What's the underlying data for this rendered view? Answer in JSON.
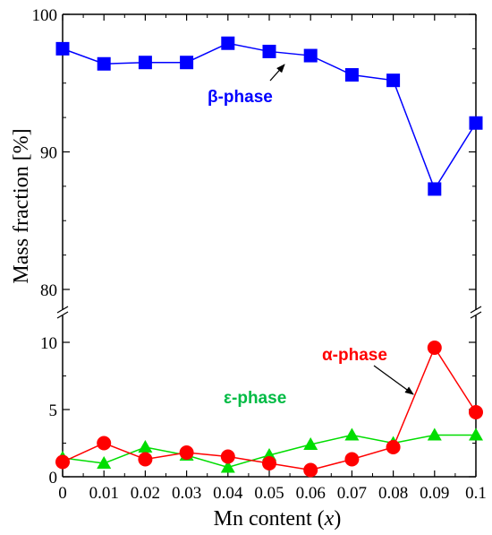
{
  "chart_data": {
    "type": "scatter",
    "xlabel": "Mn content (",
    "xlabel_var": "x",
    "xlabel_end": ")",
    "ylabel": "Mass fraction [%]",
    "x": [
      0,
      0.01,
      0.02,
      0.03,
      0.04,
      0.05,
      0.06,
      0.07,
      0.08,
      0.09,
      0.1
    ],
    "x_tick_labels": [
      "0",
      "0.01",
      "0.02",
      "0.03",
      "0.04",
      "0.05",
      "0.06",
      "0.07",
      "0.08",
      "0.09",
      "0.1"
    ],
    "xlim": [
      0,
      0.1
    ],
    "broken_y_axis": true,
    "upper_ylim": [
      78.5,
      100
    ],
    "upper_yticks": [
      "80",
      "90",
      "100"
    ],
    "lower_ylim": [
      0,
      12
    ],
    "lower_yticks": [
      "0",
      "5",
      "10"
    ],
    "grid": false,
    "series": [
      {
        "name": "β-phase",
        "marker": "square",
        "color": "#0000ff",
        "panel": "upper",
        "values": [
          97.5,
          96.4,
          96.5,
          96.5,
          97.9,
          97.3,
          97.0,
          95.6,
          95.2,
          87.3,
          92.1
        ]
      },
      {
        "name": "α-phase",
        "marker": "circle",
        "color": "#ff0000",
        "panel": "lower",
        "values": [
          1.1,
          2.5,
          1.3,
          1.8,
          1.5,
          1.0,
          0.5,
          1.3,
          2.2,
          9.6,
          4.8
        ]
      },
      {
        "name": "ε-phase",
        "marker": "triangle",
        "color": "#00dd00",
        "panel": "lower",
        "values": [
          1.4,
          1.0,
          2.2,
          1.6,
          0.7,
          1.6,
          2.4,
          3.1,
          2.5,
          3.1,
          3.1
        ]
      }
    ]
  }
}
